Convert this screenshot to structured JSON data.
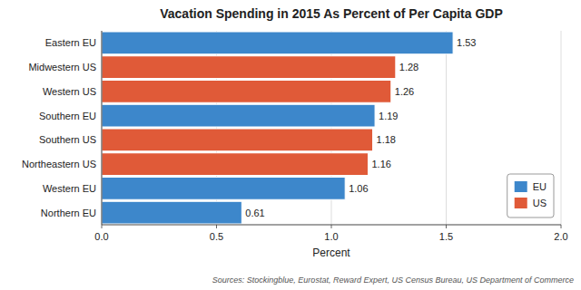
{
  "chart_data": {
    "type": "bar",
    "orientation": "horizontal",
    "title": "Vacation Spending in 2015 As Percent of Per Capita GDP",
    "xlabel": "Percent",
    "source": "Sources: Stockingblue, Eurostat, Reward Expert, US Census Bureau, US Department of Commerce",
    "categories": [
      "Eastern EU",
      "Midwestern US",
      "Western US",
      "Southern EU",
      "Southern US",
      "Northeastern US",
      "Western EU",
      "Northern EU"
    ],
    "values": [
      1.53,
      1.28,
      1.26,
      1.19,
      1.18,
      1.16,
      1.06,
      0.61
    ],
    "colors": [
      "#3d87cb",
      "#e05a38",
      "#e05a38",
      "#3d87cb",
      "#e05a38",
      "#e05a38",
      "#3d87cb",
      "#3d87cb"
    ],
    "xlim": [
      0.0,
      2.0
    ],
    "xticks": [
      {
        "value": 0.0,
        "label": "0.0"
      },
      0.5,
      {
        "value": 1.0,
        "label": "1.0"
      },
      1.5,
      {
        "value": 2.0,
        "label": "2.0"
      }
    ],
    "grid": true,
    "data_labels": true,
    "legend": "lower right",
    "legend_entries": [
      {
        "name": "EU",
        "color": "#3d87cb"
      },
      {
        "name": "US",
        "color": "#e05a38"
      }
    ]
  }
}
